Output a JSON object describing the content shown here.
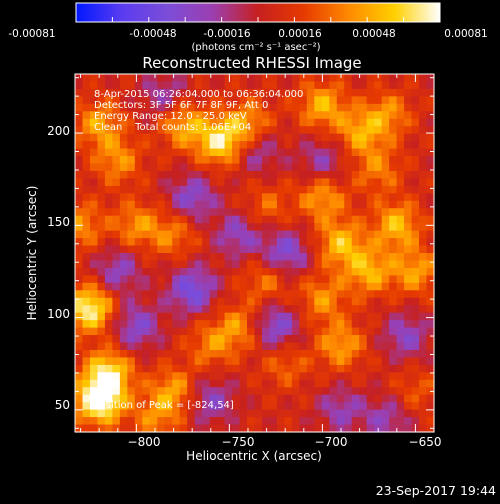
{
  "colorbar": {
    "tick_labels": [
      "-0.00081",
      "-0.00048",
      "-0.00016",
      "0.00016",
      "0.00048",
      "0.00081"
    ],
    "units": "(photons cm⁻² s⁻¹ asec⁻²)",
    "range": [
      -0.00081,
      0.00081
    ],
    "stops": [
      "#0018ff",
      "#5a3cf0",
      "#7b4dd8",
      "#9b3fb0",
      "#c62020",
      "#e63a00",
      "#ff8a00",
      "#ffd000",
      "#ffffff"
    ]
  },
  "info_lines": [
    "8-Apr-2015 06:26:04.000 to 06:36:04.000",
    "Detectors: 3F 5F 6F 7F 8F 9F, Att 0",
    "Energy Range: 12.0 - 25.0 keV",
    "Clean    Total counts: 1.06E+04"
  ],
  "peak_label": "Position of Peak = [-824,54]",
  "footer_date": "23-Sep-2017 19:44",
  "chart_data": {
    "type": "heatmap",
    "title": "Reconstructed RHESSI Image",
    "xlabel": "Heliocentric X (arcsec)",
    "ylabel": "Heliocentric Y (arcsec)",
    "xlim": [
      -833,
      -640
    ],
    "ylim": [
      38,
      232
    ],
    "x_ticks": [
      -800,
      -750,
      -700,
      -650
    ],
    "y_ticks": [
      50,
      100,
      150,
      200
    ],
    "x_tick_labels": [
      "−800",
      "−750",
      "−700",
      "−650"
    ],
    "y_tick_labels": [
      "50",
      "100",
      "150",
      "200"
    ],
    "peak_position": [
      -824,
      54
    ],
    "hot_spots": [
      {
        "x": -820,
        "y": 55,
        "v": 0.00081
      },
      {
        "x": -825,
        "y": 105,
        "v": 0.0007
      },
      {
        "x": -815,
        "y": 70,
        "v": 0.0006
      },
      {
        "x": -780,
        "y": 60,
        "v": 0.0004
      },
      {
        "x": -820,
        "y": 205,
        "v": 0.0004
      },
      {
        "x": -810,
        "y": 185,
        "v": 0.00035
      },
      {
        "x": -775,
        "y": 205,
        "v": 0.00045
      },
      {
        "x": -755,
        "y": 195,
        "v": 0.0006
      },
      {
        "x": -740,
        "y": 205,
        "v": 0.0004
      },
      {
        "x": -700,
        "y": 215,
        "v": 0.00045
      },
      {
        "x": -680,
        "y": 200,
        "v": 0.0004
      },
      {
        "x": -665,
        "y": 210,
        "v": 0.00035
      },
      {
        "x": -700,
        "y": 165,
        "v": 0.0004
      },
      {
        "x": -690,
        "y": 140,
        "v": 0.00048
      },
      {
        "x": -675,
        "y": 125,
        "v": 0.00045
      },
      {
        "x": -660,
        "y": 150,
        "v": 0.00048
      },
      {
        "x": -650,
        "y": 125,
        "v": 0.0004
      },
      {
        "x": -700,
        "y": 110,
        "v": 0.00035
      },
      {
        "x": -690,
        "y": 85,
        "v": 0.0004
      },
      {
        "x": -730,
        "y": 120,
        "v": 0.0003
      },
      {
        "x": -745,
        "y": 95,
        "v": 0.00035
      },
      {
        "x": -760,
        "y": 85,
        "v": 0.0003
      },
      {
        "x": -800,
        "y": 150,
        "v": 0.00035
      },
      {
        "x": -780,
        "y": 145,
        "v": 0.0003
      },
      {
        "x": -830,
        "y": 150,
        "v": 0.00035
      },
      {
        "x": -730,
        "y": 160,
        "v": 0.00025
      },
      {
        "x": -790,
        "y": 45,
        "v": 0.0003
      },
      {
        "x": -720,
        "y": 75,
        "v": 0.00025
      },
      {
        "x": -650,
        "y": 60,
        "v": 0.0002
      },
      {
        "x": -670,
        "y": 180,
        "v": 0.0003
      }
    ],
    "cold_spots": [
      {
        "x": -770,
        "y": 115,
        "v": -0.0005
      },
      {
        "x": -745,
        "y": 145,
        "v": -0.00035
      },
      {
        "x": -720,
        "y": 135,
        "v": -0.00045
      },
      {
        "x": -725,
        "y": 95,
        "v": -0.00045
      },
      {
        "x": -770,
        "y": 165,
        "v": -0.0004
      },
      {
        "x": -800,
        "y": 95,
        "v": -0.0004
      },
      {
        "x": -810,
        "y": 125,
        "v": -0.00035
      },
      {
        "x": -700,
        "y": 185,
        "v": -0.0003
      },
      {
        "x": -655,
        "y": 90,
        "v": -0.00035
      },
      {
        "x": -665,
        "y": 45,
        "v": -0.0003
      },
      {
        "x": -760,
        "y": 55,
        "v": -0.00035
      },
      {
        "x": -785,
        "y": 220,
        "v": -0.0003
      },
      {
        "x": -690,
        "y": 50,
        "v": -0.0003
      },
      {
        "x": -735,
        "y": 190,
        "v": -0.0003
      }
    ]
  }
}
